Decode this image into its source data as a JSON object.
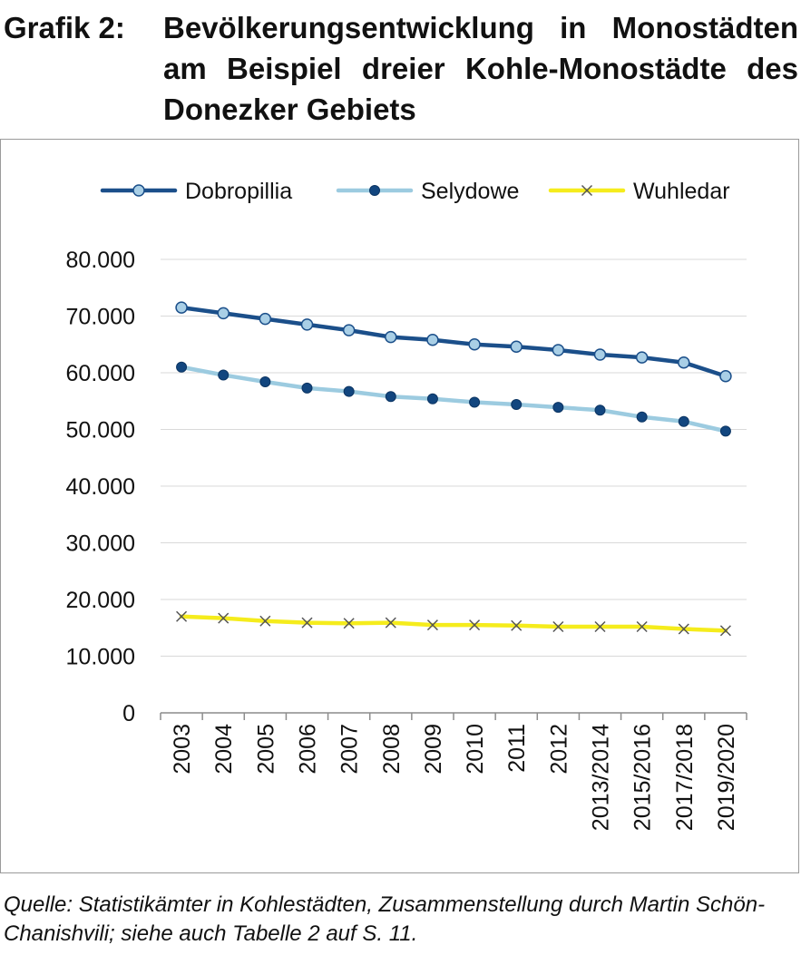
{
  "heading": {
    "label": "Grafik 2:",
    "text": "Bevölkerungsentwicklung in Monostädten am Beispiel dreier Kohle-Monostädte des Donezker Gebiets"
  },
  "source": "Quelle: Statistikämter in Kohlestädten, Zusammenstellung durch Martin Schön-Chanishvili; siehe auch Tabelle 2 auf S. 11.",
  "chart_data": {
    "type": "line",
    "categories": [
      "2003",
      "2004",
      "2005",
      "2006",
      "2007",
      "2008",
      "2009",
      "2010",
      "2011",
      "2012",
      "2013/2014",
      "2015/2016",
      "2017/2018",
      "2019/2020"
    ],
    "ylim": [
      0,
      80000
    ],
    "yticks": [
      0,
      10000,
      20000,
      30000,
      40000,
      50000,
      60000,
      70000,
      80000
    ],
    "ytick_labels": [
      "0",
      "10.000",
      "20.000",
      "30.000",
      "40.000",
      "50.000",
      "60.000",
      "70.000",
      "80.000"
    ],
    "grid": true,
    "legend_position": "top",
    "series": [
      {
        "name": "Dobropillia",
        "color": "#1b4f8a",
        "marker": "circle-light",
        "values": [
          71500,
          70500,
          69500,
          68500,
          67500,
          66300,
          65800,
          65000,
          64600,
          64000,
          63200,
          62700,
          61800,
          59400
        ]
      },
      {
        "name": "Selydowe",
        "color": "#9ccbe0",
        "marker": "circle-dark",
        "values": [
          61000,
          59600,
          58400,
          57300,
          56700,
          55800,
          55400,
          54800,
          54400,
          53900,
          53400,
          52200,
          51400,
          49700
        ]
      },
      {
        "name": "Wuhledar",
        "color": "#f5ec1c",
        "marker": "cross",
        "values": [
          17000,
          16700,
          16200,
          15900,
          15800,
          15900,
          15500,
          15500,
          15400,
          15200,
          15200,
          15200,
          14800,
          14500
        ]
      }
    ]
  }
}
